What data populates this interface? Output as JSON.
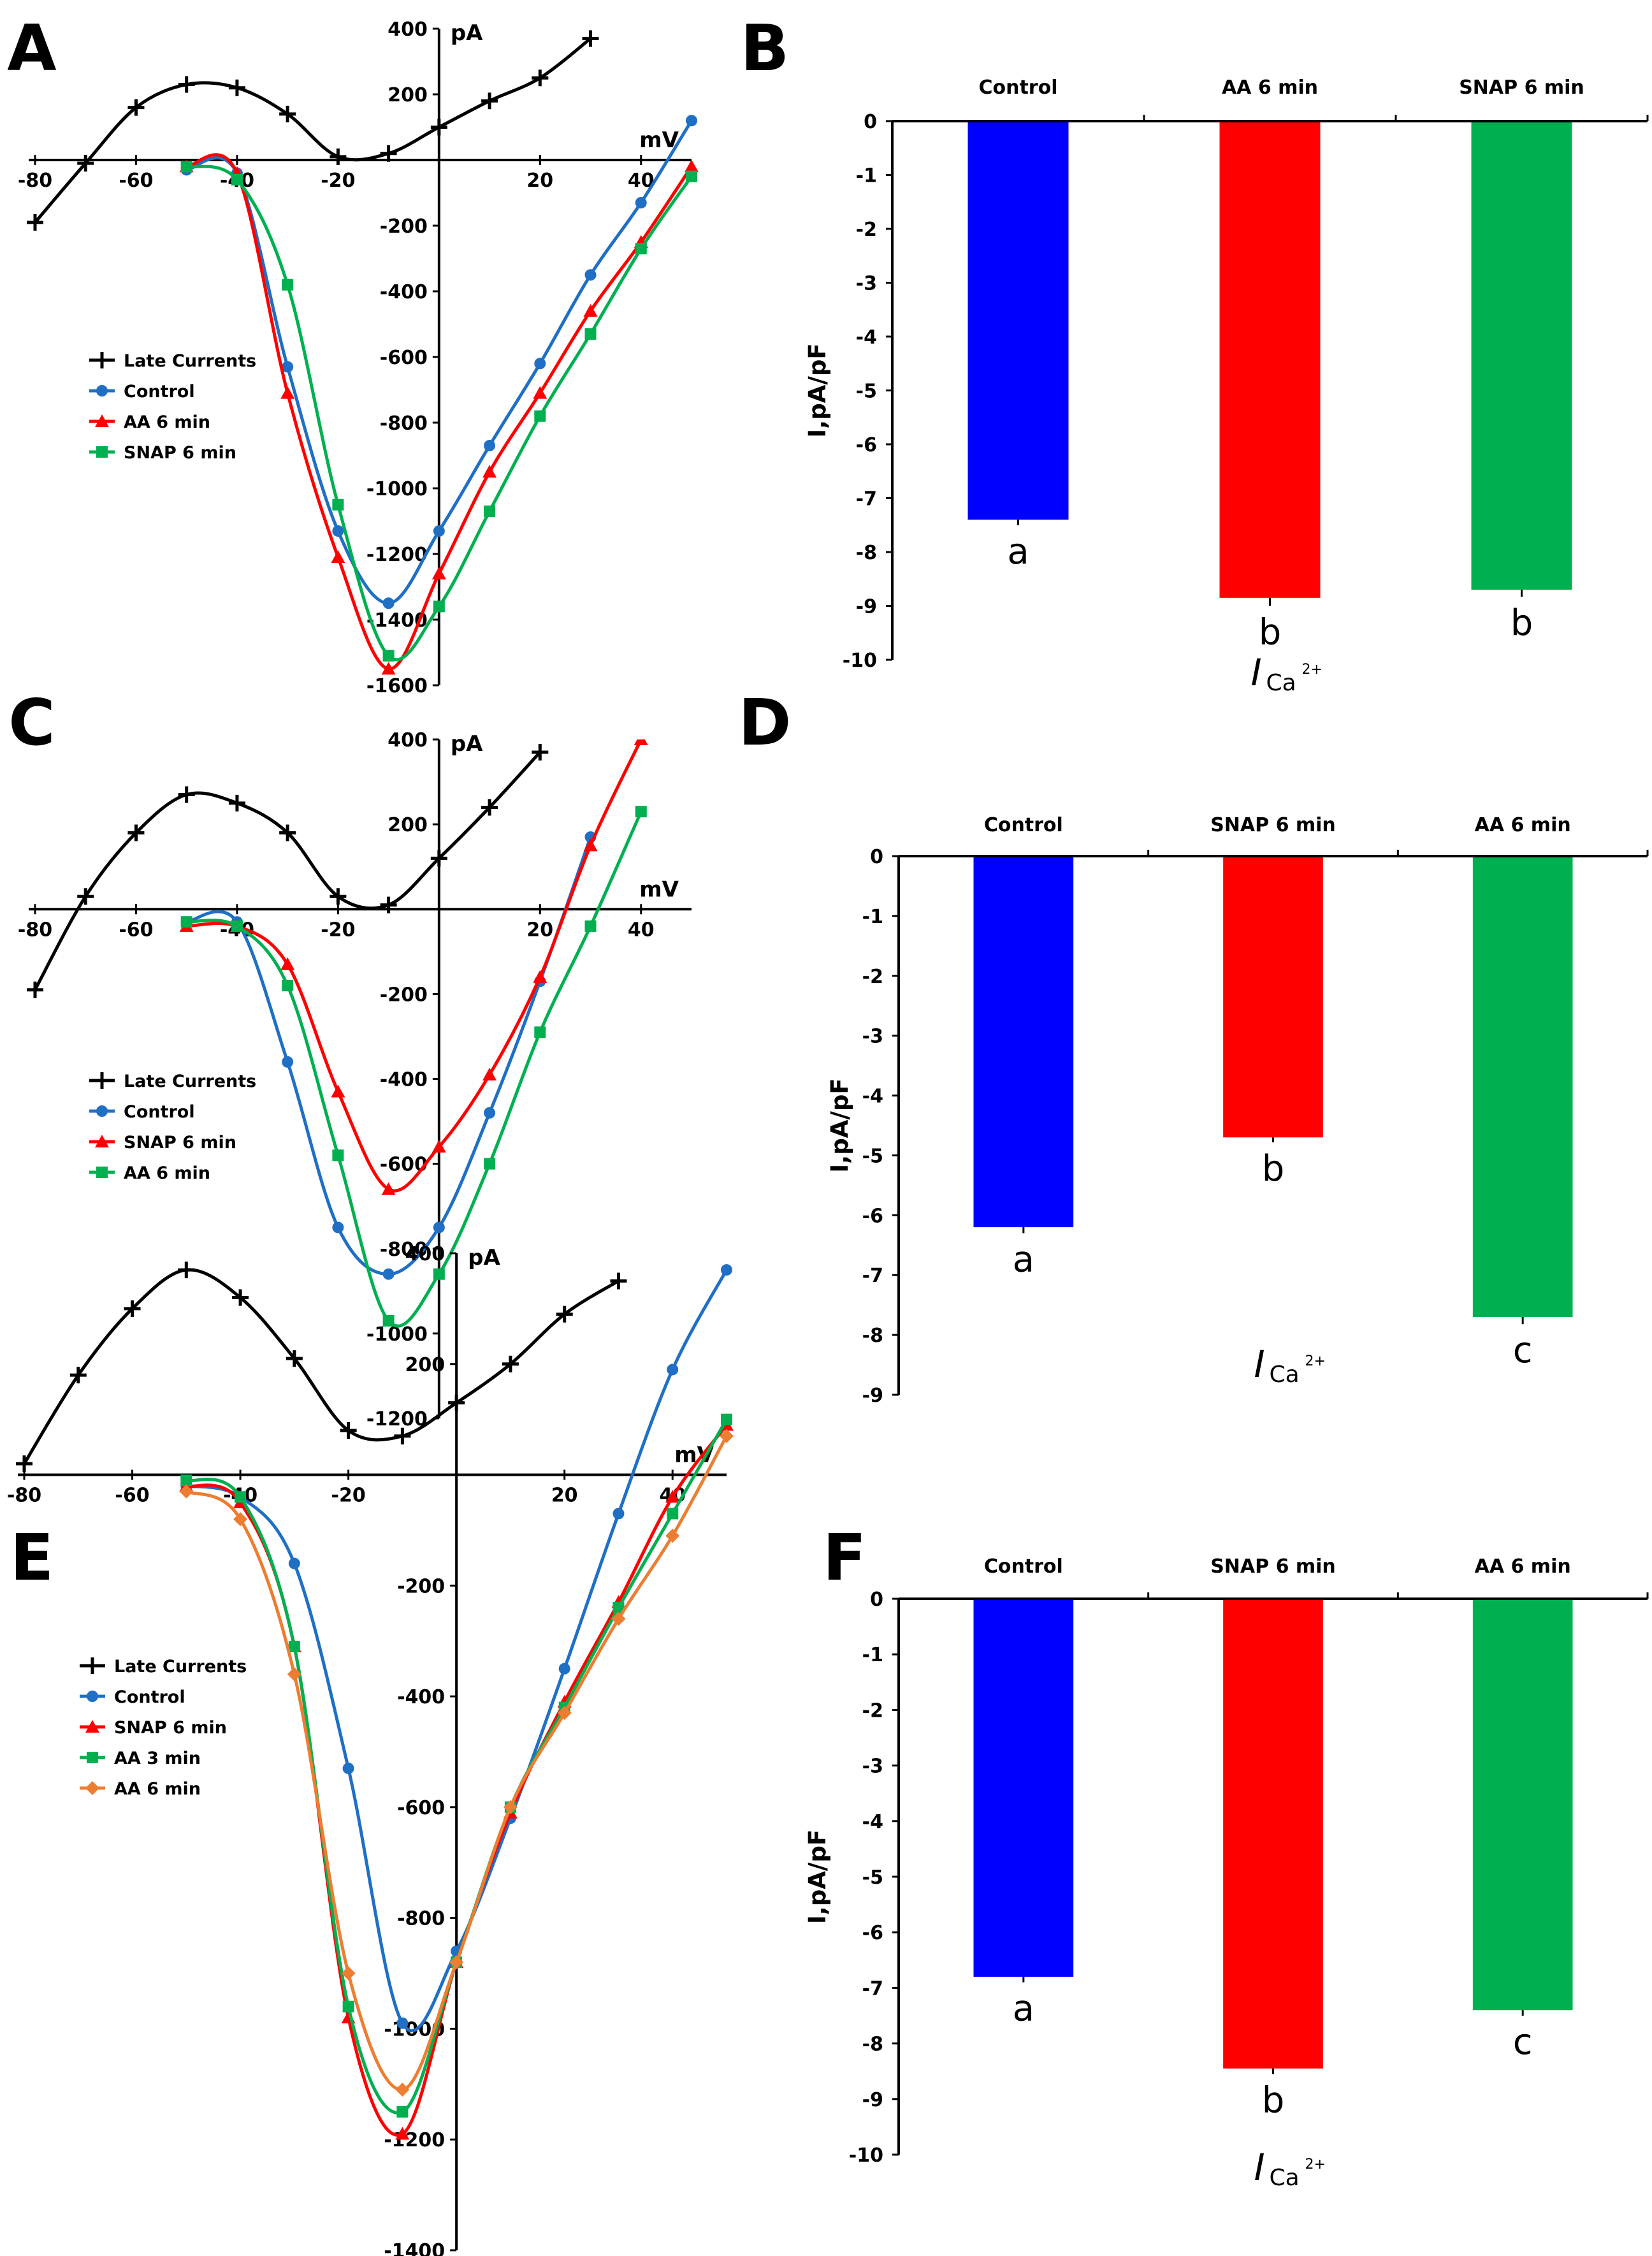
{
  "panels": [
    "A",
    "B",
    "C",
    "D",
    "E",
    "F"
  ],
  "chart_data": [
    {
      "id": "A",
      "type": "line",
      "x_unit": "mV",
      "y_unit": "pA",
      "xlim": [
        -80,
        50
      ],
      "ylim": [
        -1600,
        400
      ],
      "x_ticks": [
        -80,
        -60,
        -40,
        -20,
        0,
        20,
        40
      ],
      "y_ticks": [
        -1600,
        -1400,
        -1200,
        -1000,
        -800,
        -600,
        -400,
        -200,
        0,
        200,
        400
      ],
      "legend": [
        "Late Currents",
        "Control",
        "AA 6 min",
        "SNAP 6 min"
      ],
      "series": [
        {
          "name": "Late Currents",
          "color": "#000000",
          "marker": "plus",
          "x": [
            -80,
            -70,
            -60,
            -50,
            -40,
            -30,
            -20,
            -10,
            0,
            10,
            20,
            30
          ],
          "y": [
            -190,
            -10,
            160,
            230,
            220,
            140,
            10,
            20,
            100,
            180,
            250,
            370
          ]
        },
        {
          "name": "Control",
          "color": "#1f6fc5",
          "marker": "circle",
          "x": [
            -50,
            -40,
            -30,
            -20,
            -10,
            0,
            10,
            20,
            30,
            40,
            50
          ],
          "y": [
            -30,
            -40,
            -630,
            -1130,
            -1350,
            -1130,
            -870,
            -620,
            -350,
            -130,
            120
          ]
        },
        {
          "name": "AA 6 min",
          "color": "#ff0000",
          "marker": "triangle",
          "x": [
            -50,
            -40,
            -30,
            -20,
            -10,
            0,
            10,
            20,
            30,
            40,
            50
          ],
          "y": [
            -20,
            -40,
            -710,
            -1210,
            -1550,
            -1260,
            -950,
            -710,
            -460,
            -250,
            -20
          ]
        },
        {
          "name": "SNAP 6 min",
          "color": "#00b050",
          "marker": "square",
          "x": [
            -50,
            -40,
            -30,
            -20,
            -10,
            0,
            10,
            20,
            30,
            40,
            50
          ],
          "y": [
            -20,
            -60,
            -380,
            -1050,
            -1510,
            -1360,
            -1070,
            -780,
            -530,
            -270,
            -50
          ]
        }
      ]
    },
    {
      "id": "B",
      "type": "bar",
      "ylabel": "I,pA/pF",
      "xlabel_main": "I",
      "xlabel_sub": "Ca",
      "xlabel_sup": "2+",
      "ylim": [
        -10,
        0
      ],
      "y_ticks": [
        0,
        -1,
        -2,
        -3,
        -4,
        -5,
        -6,
        -7,
        -8,
        -9,
        -10
      ],
      "categories": [
        "Control",
        "AA 6 min",
        "SNAP 6 min"
      ],
      "values": [
        -7.4,
        -8.85,
        -8.7
      ],
      "errors": [
        0.1,
        0.15,
        0.13
      ],
      "colors": [
        "#0000ff",
        "#ff0000",
        "#00b050"
      ],
      "significance": [
        "a",
        "b",
        "b"
      ]
    },
    {
      "id": "C",
      "type": "line",
      "x_unit": "mV",
      "y_unit": "pA",
      "xlim": [
        -80,
        50
      ],
      "ylim": [
        -1200,
        400
      ],
      "x_ticks": [
        -80,
        -60,
        -40,
        -20,
        0,
        20,
        40
      ],
      "y_ticks": [
        -1200,
        -1000,
        -800,
        -600,
        -400,
        -200,
        0,
        200,
        400
      ],
      "legend": [
        "Late Currents",
        "Control",
        "SNAP 6 min",
        "AA 6 min"
      ],
      "series": [
        {
          "name": "Late Currents",
          "color": "#000000",
          "marker": "plus",
          "x": [
            -80,
            -70,
            -60,
            -50,
            -40,
            -30,
            -20,
            -10,
            0,
            10,
            20
          ],
          "y": [
            -190,
            30,
            180,
            270,
            250,
            180,
            30,
            10,
            120,
            240,
            370
          ]
        },
        {
          "name": "Control",
          "color": "#1f6fc5",
          "marker": "circle",
          "x": [
            -50,
            -40,
            -30,
            -20,
            -10,
            0,
            10,
            20,
            30
          ],
          "y": [
            -30,
            -30,
            -360,
            -750,
            -860,
            -750,
            -480,
            -170,
            170
          ]
        },
        {
          "name": "SNAP 6 min",
          "color": "#ff0000",
          "marker": "triangle",
          "x": [
            -50,
            -40,
            -30,
            -20,
            -10,
            0,
            10,
            20,
            30,
            40
          ],
          "y": [
            -40,
            -40,
            -130,
            -430,
            -660,
            -560,
            -390,
            -160,
            150,
            400
          ]
        },
        {
          "name": "AA 6 min",
          "color": "#00b050",
          "marker": "square",
          "x": [
            -50,
            -40,
            -30,
            -20,
            -10,
            0,
            10,
            20,
            30,
            40
          ],
          "y": [
            -30,
            -40,
            -180,
            -580,
            -970,
            -860,
            -600,
            -290,
            -40,
            230
          ]
        }
      ]
    },
    {
      "id": "D",
      "type": "bar",
      "ylabel": "I,pA/pF",
      "xlabel_main": "I",
      "xlabel_sub": "Ca",
      "xlabel_sup": "2+",
      "ylim": [
        -9,
        0
      ],
      "y_ticks": [
        0,
        -1,
        -2,
        -3,
        -4,
        -5,
        -6,
        -7,
        -8,
        -9
      ],
      "categories": [
        "Control",
        "SNAP 6 min",
        "AA 6 min"
      ],
      "values": [
        -6.2,
        -4.7,
        -7.7
      ],
      "errors": [
        0.1,
        0.08,
        0.12
      ],
      "colors": [
        "#0000ff",
        "#ff0000",
        "#00b050"
      ],
      "significance": [
        "a",
        "b",
        "c"
      ]
    },
    {
      "id": "E",
      "type": "line",
      "x_unit": "mV",
      "y_unit": "pA",
      "xlim": [
        -80,
        50
      ],
      "ylim": [
        -1400,
        400
      ],
      "x_ticks": [
        -80,
        -60,
        -40,
        -20,
        0,
        20,
        40
      ],
      "y_ticks": [
        -1400,
        -1200,
        -1000,
        -800,
        -600,
        -400,
        -200,
        0,
        200,
        400
      ],
      "legend": [
        "Late Currents",
        "Control",
        "SNAP 6 min",
        "AA 3 min",
        "AA 6 min"
      ],
      "series": [
        {
          "name": "Late Currents",
          "color": "#000000",
          "marker": "plus",
          "x": [
            -80,
            -70,
            -60,
            -50,
            -40,
            -30,
            -20,
            -10,
            0,
            10,
            20,
            30
          ],
          "y": [
            20,
            180,
            300,
            370,
            320,
            210,
            80,
            70,
            130,
            200,
            290,
            350
          ]
        },
        {
          "name": "Control",
          "color": "#1f6fc5",
          "marker": "circle",
          "x": [
            -50,
            -40,
            -30,
            -20,
            -10,
            0,
            10,
            20,
            30,
            40,
            50
          ],
          "y": [
            -20,
            -40,
            -160,
            -530,
            -990,
            -860,
            -620,
            -350,
            -70,
            190,
            370
          ]
        },
        {
          "name": "SNAP 6 min",
          "color": "#ff0000",
          "marker": "triangle",
          "x": [
            -50,
            -40,
            -30,
            -20,
            -10,
            0,
            10,
            20,
            30,
            40,
            50
          ],
          "y": [
            -20,
            -50,
            -310,
            -980,
            -1190,
            -880,
            -610,
            -410,
            -230,
            -40,
            90
          ]
        },
        {
          "name": "AA 3 min",
          "color": "#00b050",
          "marker": "square",
          "x": [
            -50,
            -40,
            -30,
            -20,
            -10,
            0,
            10,
            20,
            30,
            40,
            50
          ],
          "y": [
            -10,
            -40,
            -310,
            -960,
            -1150,
            -880,
            -600,
            -420,
            -240,
            -70,
            100
          ]
        },
        {
          "name": "AA 6 min",
          "color": "#ed7d31",
          "marker": "diamond",
          "x": [
            -50,
            -40,
            -30,
            -20,
            -10,
            0,
            10,
            20,
            30,
            40,
            50
          ],
          "y": [
            -30,
            -80,
            -360,
            -900,
            -1110,
            -880,
            -600,
            -430,
            -260,
            -110,
            70
          ]
        }
      ]
    },
    {
      "id": "F",
      "type": "bar",
      "ylabel": "I,pA/pF",
      "xlabel_main": "I",
      "xlabel_sub": "Ca",
      "xlabel_sup": "2+",
      "ylim": [
        -10,
        0
      ],
      "y_ticks": [
        0,
        -1,
        -2,
        -3,
        -4,
        -5,
        -6,
        -7,
        -8,
        -9,
        -10
      ],
      "categories": [
        "Control",
        "SNAP 6 min",
        "AA 6 min"
      ],
      "values": [
        -6.8,
        -8.45,
        -7.4
      ],
      "errors": [
        0.1,
        0.1,
        0.1
      ],
      "colors": [
        "#0000ff",
        "#ff0000",
        "#00b050"
      ],
      "significance": [
        "a",
        "b",
        "c"
      ]
    }
  ]
}
